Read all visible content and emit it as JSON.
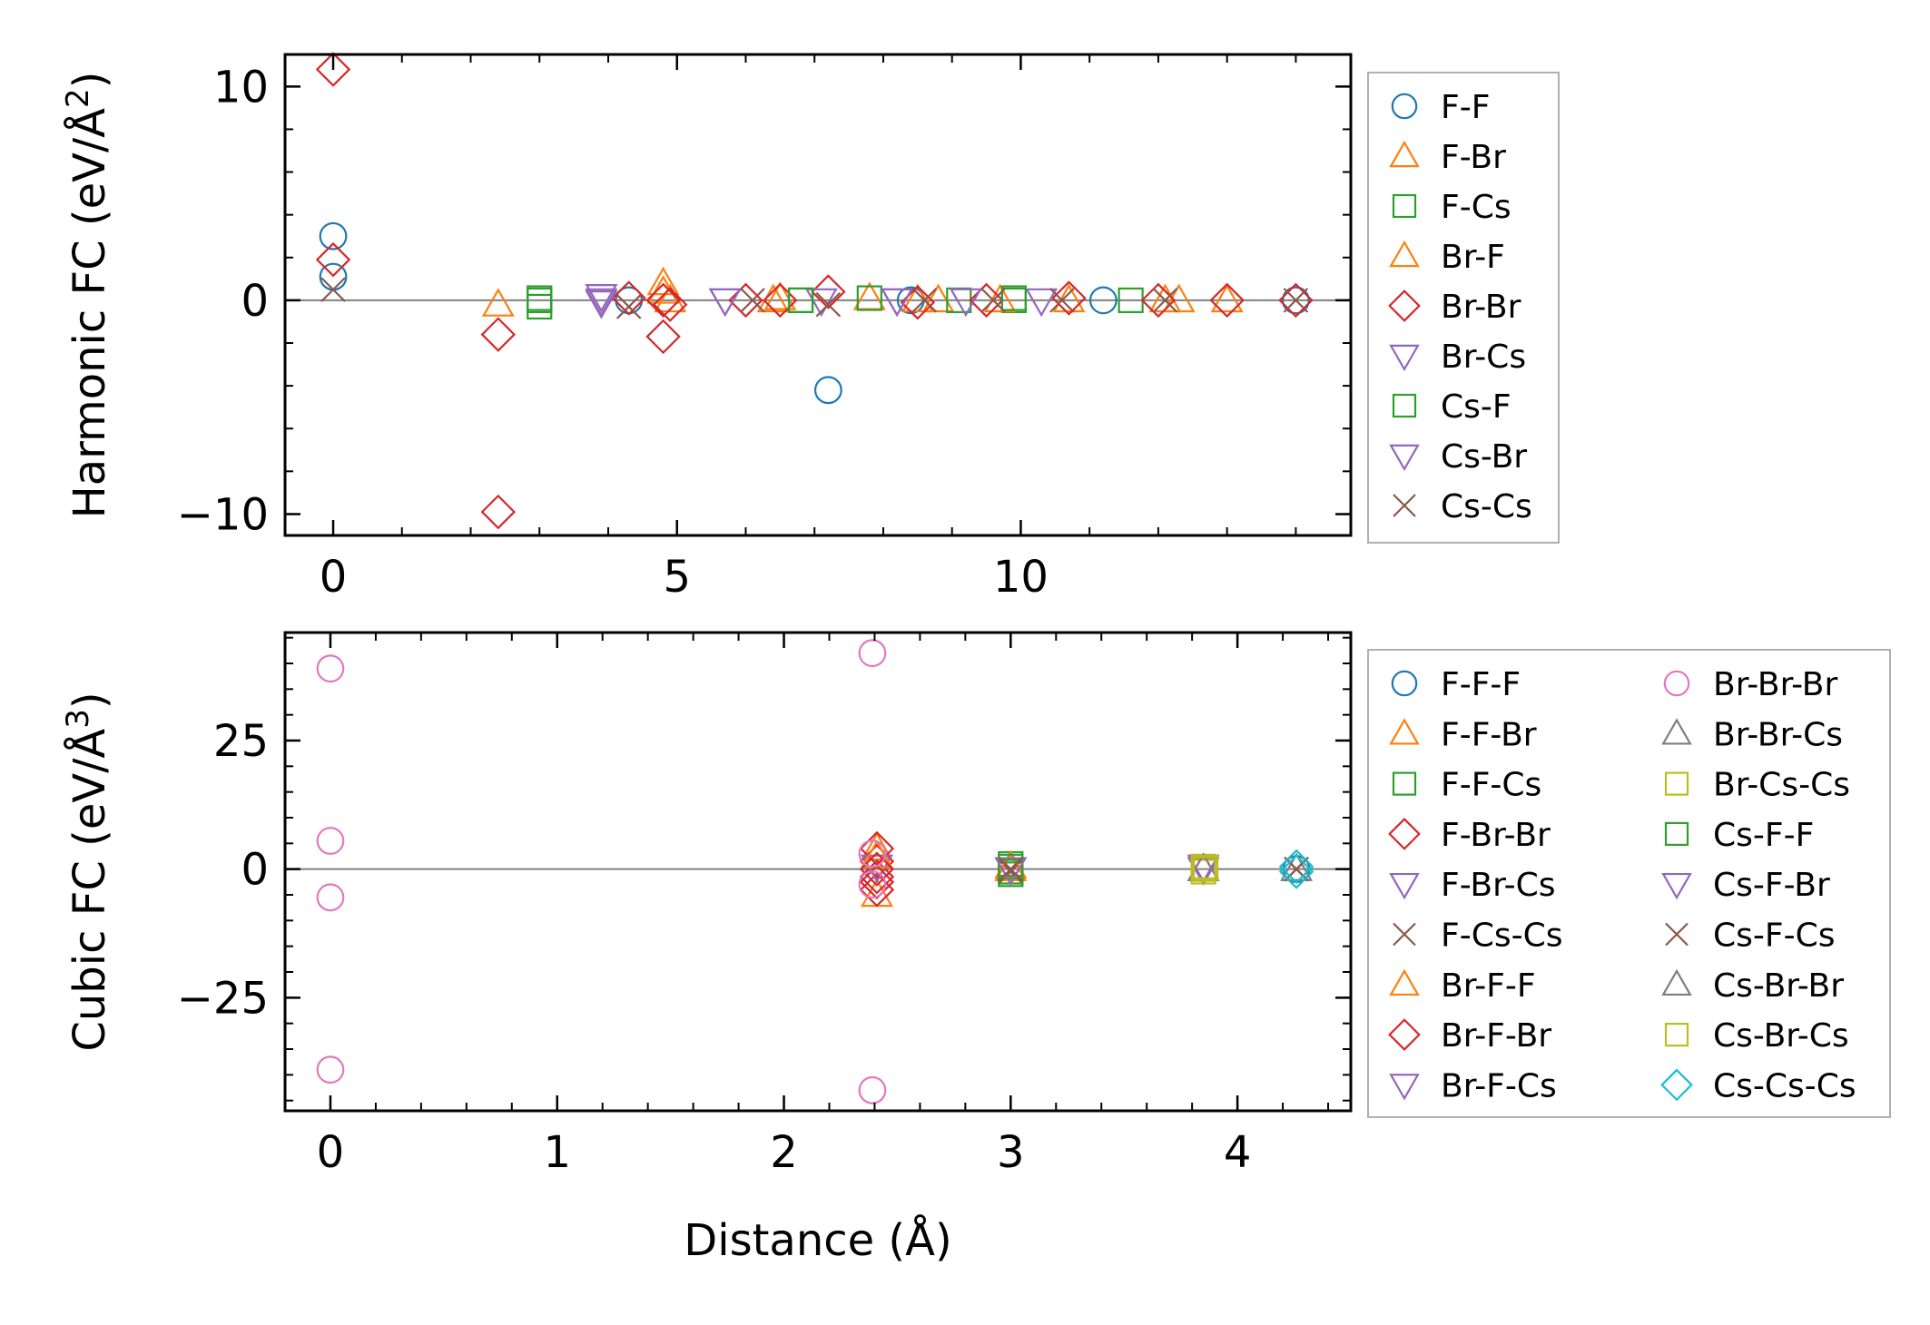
{
  "chart_data": [
    {
      "type": "scatter",
      "id": "harmonic",
      "ylabel_main": "Harmonic FC (eV/Å",
      "ylabel_sup": "2",
      "ylabel_end": ")",
      "xlim": [
        -0.7,
        14.8
      ],
      "ylim": [
        -11,
        11.5
      ],
      "xticks": [
        0,
        5,
        10
      ],
      "xtick_labels": [
        "0",
        "5",
        "10"
      ],
      "yticks": [
        -10,
        0,
        10
      ],
      "ytick_labels": [
        "−10",
        "0",
        "10"
      ],
      "xminor_step": 1,
      "yminor_step": 2,
      "zero_line": true,
      "legend_columns": 1,
      "series": [
        {
          "name": "F-F",
          "marker": "circle",
          "color": "#1f77b4",
          "points": [
            [
              0,
              3.0
            ],
            [
              0,
              1.1
            ],
            [
              7.2,
              -4.2
            ],
            [
              4.3,
              0.0
            ],
            [
              8.4,
              0.0
            ],
            [
              11.2,
              0.0
            ],
            [
              14.0,
              0.0
            ]
          ]
        },
        {
          "name": "F-Br",
          "marker": "triangle-up",
          "color": "#ff7f0e",
          "points": [
            [
              2.4,
              -0.2
            ],
            [
              4.8,
              0.8
            ],
            [
              4.9,
              0.0
            ],
            [
              6.5,
              0.1
            ],
            [
              7.8,
              0.1
            ],
            [
              8.8,
              0.0
            ],
            [
              10.7,
              0.0
            ],
            [
              12.3,
              0.0
            ],
            [
              13.0,
              0.0
            ]
          ]
        },
        {
          "name": "F-Cs",
          "marker": "square",
          "color": "#2ca02c",
          "points": [
            [
              3.0,
              0.1
            ],
            [
              3.0,
              -0.3
            ],
            [
              6.8,
              0.0
            ],
            [
              7.8,
              0.1
            ],
            [
              9.1,
              0.0
            ],
            [
              9.9,
              0.0
            ],
            [
              11.6,
              0.0
            ]
          ]
        },
        {
          "name": "Br-F",
          "marker": "triangle-up",
          "color": "#ff7f0e",
          "points": [
            [
              4.8,
              0.4
            ],
            [
              6.4,
              0.0
            ],
            [
              8.5,
              0.0
            ],
            [
              9.7,
              0.0
            ],
            [
              12.1,
              0.0
            ]
          ]
        },
        {
          "name": "Br-Br",
          "marker": "diamond",
          "color": "#d62728",
          "points": [
            [
              0,
              10.8
            ],
            [
              0,
              1.9
            ],
            [
              2.4,
              -1.6
            ],
            [
              2.4,
              -9.9
            ],
            [
              4.3,
              0.1
            ],
            [
              4.8,
              0.0
            ],
            [
              4.9,
              -0.2
            ],
            [
              4.8,
              -1.7
            ],
            [
              6.0,
              0.0
            ],
            [
              6.5,
              0.0
            ],
            [
              7.2,
              0.4
            ],
            [
              8.5,
              -0.1
            ],
            [
              9.5,
              0.0
            ],
            [
              10.7,
              0.1
            ],
            [
              12.0,
              0.0
            ],
            [
              13.0,
              0.0
            ],
            [
              14.0,
              0.0
            ]
          ]
        },
        {
          "name": "Br-Cs",
          "marker": "triangle-down",
          "color": "#9467bd",
          "points": [
            [
              3.9,
              0.2
            ],
            [
              3.9,
              -0.1
            ],
            [
              5.7,
              0.0
            ],
            [
              7.1,
              0.0
            ],
            [
              8.2,
              0.0
            ],
            [
              9.2,
              0.0
            ],
            [
              10.3,
              0.0
            ]
          ]
        },
        {
          "name": "Cs-F",
          "marker": "square",
          "color": "#2ca02c",
          "points": [
            [
              3.0,
              0.0
            ],
            [
              6.8,
              0.0
            ],
            [
              9.9,
              0.1
            ]
          ]
        },
        {
          "name": "Cs-Br",
          "marker": "triangle-down",
          "color": "#9467bd",
          "points": [
            [
              3.9,
              0.0
            ],
            [
              5.7,
              0.0
            ],
            [
              8.2,
              0.0
            ]
          ]
        },
        {
          "name": "Cs-Cs",
          "marker": "x",
          "color": "#8c564b",
          "points": [
            [
              0,
              0.5
            ],
            [
              4.3,
              -0.3
            ],
            [
              6.1,
              0.0
            ],
            [
              7.2,
              -0.2
            ],
            [
              8.6,
              0.0
            ],
            [
              9.6,
              0.0
            ],
            [
              10.6,
              0.0
            ],
            [
              12.1,
              0.0
            ],
            [
              14.0,
              0.0
            ]
          ]
        }
      ]
    },
    {
      "type": "scatter",
      "id": "cubic",
      "xlabel": "Distance (Å)",
      "ylabel_main": "Cubic FC (eV/Å",
      "ylabel_sup": "3",
      "ylabel_end": ")",
      "xlim": [
        -0.2,
        4.5
      ],
      "ylim": [
        -47,
        46
      ],
      "xticks": [
        0,
        1,
        2,
        3,
        4
      ],
      "xtick_labels": [
        "0",
        "1",
        "2",
        "3",
        "4"
      ],
      "yticks": [
        -25,
        0,
        25
      ],
      "ytick_labels": [
        "−25",
        "0",
        "25"
      ],
      "xminor_step": 0.2,
      "yminor_step": 5,
      "zero_line": true,
      "legend_columns": 2,
      "series": [
        {
          "name": "F-F-F",
          "marker": "circle",
          "color": "#1f77b4",
          "points": [
            [
              4.26,
              0.0
            ]
          ]
        },
        {
          "name": "F-F-Br",
          "marker": "triangle-up",
          "color": "#ff7f0e",
          "points": [
            [
              2.41,
              -5.0
            ],
            [
              2.41,
              4.0
            ],
            [
              3.0,
              0.0
            ]
          ]
        },
        {
          "name": "F-F-Cs",
          "marker": "square",
          "color": "#2ca02c",
          "points": [
            [
              3.0,
              1.0
            ],
            [
              3.0,
              -1.0
            ]
          ]
        },
        {
          "name": "F-Br-Br",
          "marker": "diamond",
          "color": "#d62728",
          "points": [
            [
              2.41,
              4.0
            ],
            [
              2.41,
              1.5
            ],
            [
              2.41,
              -1.5
            ],
            [
              2.41,
              -4.0
            ]
          ]
        },
        {
          "name": "F-Br-Cs",
          "marker": "triangle-down",
          "color": "#9467bd",
          "points": [
            [
              2.41,
              0.5
            ],
            [
              3.85,
              0.0
            ]
          ]
        },
        {
          "name": "F-Cs-Cs",
          "marker": "x",
          "color": "#8c564b",
          "points": [
            [
              3.0,
              -0.5
            ],
            [
              4.26,
              0.0
            ]
          ]
        },
        {
          "name": "Br-F-F",
          "marker": "triangle-up",
          "color": "#ff7f0e",
          "points": [
            [
              2.41,
              2.5
            ],
            [
              3.0,
              0.5
            ]
          ]
        },
        {
          "name": "Br-F-Br",
          "marker": "diamond",
          "color": "#d62728",
          "points": [
            [
              2.41,
              -2.5
            ],
            [
              2.41,
              0.0
            ]
          ]
        },
        {
          "name": "Br-F-Cs",
          "marker": "triangle-down",
          "color": "#9467bd",
          "points": [
            [
              3.0,
              0.0
            ],
            [
              3.85,
              0.5
            ]
          ]
        },
        {
          "name": "Br-Br-Br",
          "marker": "circle",
          "color": "#e377c2",
          "points": [
            [
              0,
              39.0
            ],
            [
              0,
              5.5
            ],
            [
              0,
              -5.5
            ],
            [
              0,
              -39.0
            ],
            [
              2.39,
              42.0
            ],
            [
              2.39,
              3.0
            ],
            [
              2.39,
              -3.0
            ],
            [
              2.39,
              -43.0
            ]
          ]
        },
        {
          "name": "Br-Br-Cs",
          "marker": "triangle-up",
          "color": "#7f7f7f",
          "points": [
            [
              3.85,
              0.0
            ],
            [
              4.26,
              0.0
            ]
          ]
        },
        {
          "name": "Br-Cs-Cs",
          "marker": "square",
          "color": "#bcbd22",
          "points": [
            [
              3.85,
              0.5
            ],
            [
              3.85,
              -0.5
            ]
          ]
        },
        {
          "name": "Cs-F-F",
          "marker": "square",
          "color": "#2ca02c",
          "points": [
            [
              3.0,
              0.5
            ],
            [
              3.0,
              -0.5
            ]
          ]
        },
        {
          "name": "Cs-F-Br",
          "marker": "triangle-down",
          "color": "#9467bd",
          "points": [
            [
              3.0,
              0.0
            ]
          ]
        },
        {
          "name": "Cs-F-Cs",
          "marker": "x",
          "color": "#8c564b",
          "points": [
            [
              3.0,
              0.0
            ],
            [
              4.26,
              0.0
            ]
          ]
        },
        {
          "name": "Cs-Br-Br",
          "marker": "triangle-up",
          "color": "#7f7f7f",
          "points": [
            [
              3.85,
              0.0
            ]
          ]
        },
        {
          "name": "Cs-Br-Cs",
          "marker": "square",
          "color": "#bcbd22",
          "points": [
            [
              3.85,
              0.0
            ],
            [
              3.86,
              0.3
            ]
          ]
        },
        {
          "name": "Cs-Cs-Cs",
          "marker": "diamond",
          "color": "#17becf",
          "points": [
            [
              4.26,
              0.5
            ],
            [
              4.26,
              -0.5
            ]
          ]
        }
      ]
    }
  ]
}
